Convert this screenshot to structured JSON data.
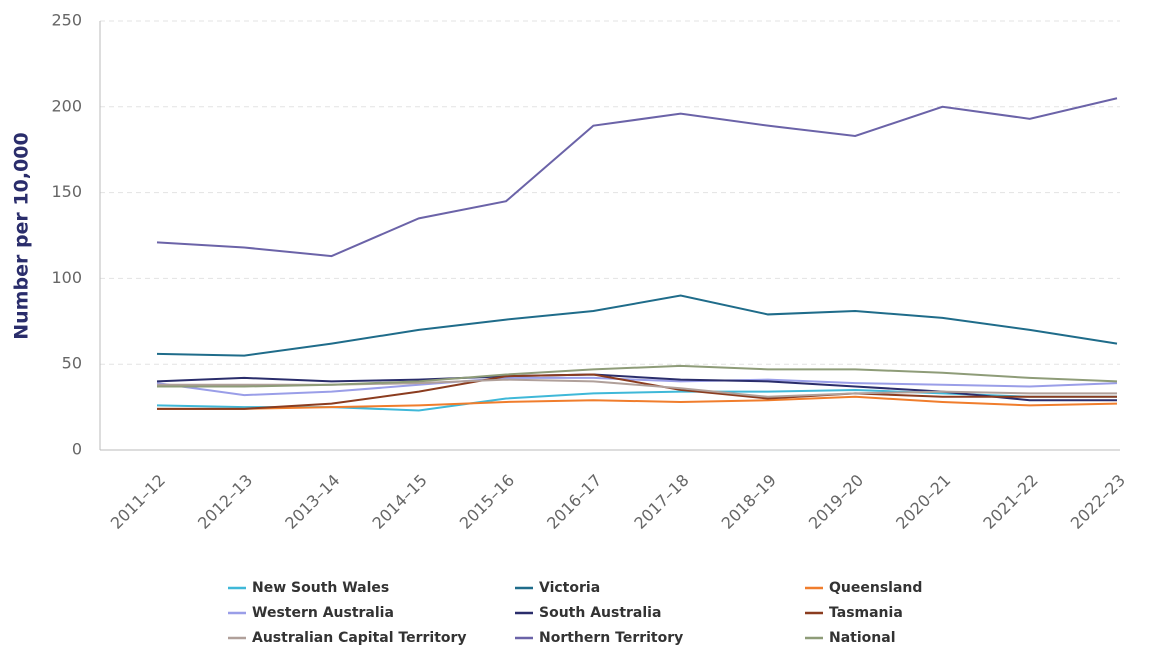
{
  "chart_data": {
    "type": "line",
    "ylabel": "Number per 10,000",
    "categories": [
      "2011–12",
      "2012–13",
      "2013–14",
      "2014–15",
      "2015–16",
      "2016–17",
      "2017–18",
      "2018–19",
      "2019–20",
      "2020–21",
      "2021–22",
      "2022–23"
    ],
    "series": [
      {
        "name": "New South Wales",
        "color": "#3fb8d8",
        "values": [
          26,
          25,
          25,
          23,
          30,
          33,
          34,
          34,
          35,
          33,
          31,
          31
        ]
      },
      {
        "name": "Victoria",
        "color": "#1f6c8a",
        "values": [
          56,
          55,
          62,
          70,
          76,
          81,
          90,
          79,
          81,
          77,
          70,
          62
        ]
      },
      {
        "name": "Queensland",
        "color": "#f07d2c",
        "values": [
          24,
          24,
          25,
          26,
          28,
          29,
          28,
          29,
          31,
          28,
          26,
          27
        ]
      },
      {
        "name": "Western Australia",
        "color": "#9a9ee8",
        "values": [
          39,
          32,
          34,
          38,
          42,
          42,
          40,
          41,
          39,
          38,
          37,
          39
        ]
      },
      {
        "name": "South Australia",
        "color": "#2a2d6b",
        "values": [
          40,
          42,
          40,
          41,
          43,
          44,
          41,
          40,
          37,
          34,
          29,
          29
        ]
      },
      {
        "name": "Tasmania",
        "color": "#8b3c1f",
        "values": [
          24,
          24,
          27,
          34,
          43,
          44,
          35,
          30,
          33,
          31,
          31,
          31
        ]
      },
      {
        "name": "Australian Capital Territory",
        "color": "#b0a09a",
        "values": [
          38,
          38,
          38,
          39,
          41,
          40,
          36,
          31,
          33,
          34,
          33,
          33
        ]
      },
      {
        "name": "Northern Territory",
        "color": "#6b63a8",
        "values": [
          121,
          118,
          113,
          135,
          145,
          189,
          196,
          189,
          183,
          200,
          193,
          205
        ]
      },
      {
        "name": "National",
        "color": "#8e9c78",
        "values": [
          37,
          37,
          38,
          40,
          44,
          47,
          49,
          47,
          47,
          45,
          42,
          40
        ]
      }
    ],
    "ylim": [
      0,
      250
    ],
    "yticks": [
      0,
      50,
      100,
      150,
      200,
      250
    ],
    "grid": true
  }
}
